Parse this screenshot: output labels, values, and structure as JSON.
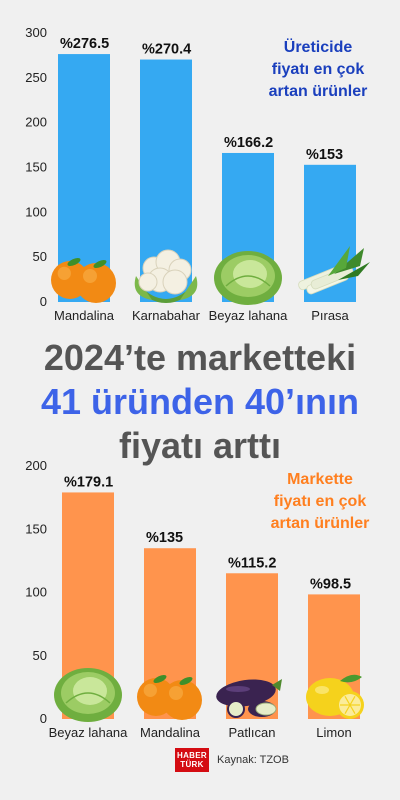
{
  "chart_data": [
    {
      "type": "bar",
      "title": "Üreticide fiyatı en çok artan ürünler",
      "title_lines": [
        "Üreticide",
        "fiyatı en çok",
        "artan ürünler"
      ],
      "categories": [
        "Mandalina",
        "Karnabahar",
        "Beyaz lahana",
        "Pırasa"
      ],
      "values": [
        276.5,
        270.4,
        166.2,
        153
      ],
      "value_labels": [
        "%276.5",
        "%270.4",
        "%166.2",
        "%153"
      ],
      "ylim": [
        0,
        300
      ],
      "yticks": [
        0,
        50,
        100,
        150,
        200,
        250,
        300
      ],
      "grid": false,
      "legend_position": "top-right",
      "bar_color": "#35a9f2",
      "title_color": "#1a3fbd",
      "icons": [
        "orange-icon",
        "cauliflower-icon",
        "cabbage-icon",
        "leek-icon"
      ]
    },
    {
      "type": "bar",
      "title": "Markette fiyatı en çok artan ürünler",
      "title_lines": [
        "Markette",
        "fiyatı en çok",
        "artan ürünler"
      ],
      "categories": [
        "Beyaz lahana",
        "Mandalina",
        "Patlıcan",
        "Limon"
      ],
      "values": [
        179.1,
        135,
        115.2,
        98.5
      ],
      "value_labels": [
        "%179.1",
        "%135",
        "%115.2",
        "%98.5"
      ],
      "ylim": [
        0,
        200
      ],
      "yticks": [
        0,
        50,
        100,
        150,
        200
      ],
      "grid": false,
      "legend_position": "top-right",
      "bar_color": "#ff944d",
      "title_color": "#ff7f1f",
      "icons": [
        "cabbage-icon",
        "orange-icon",
        "eggplant-icon",
        "lemon-icon"
      ]
    }
  ],
  "headline": {
    "line1": "2024’te marketteki",
    "line2": "41 üründen 40’ının",
    "line3": "fiyatı arttı"
  },
  "footer": {
    "logo_line1": "HABER",
    "logo_line2": "TÜRK",
    "source": "Kaynak: TZOB"
  }
}
